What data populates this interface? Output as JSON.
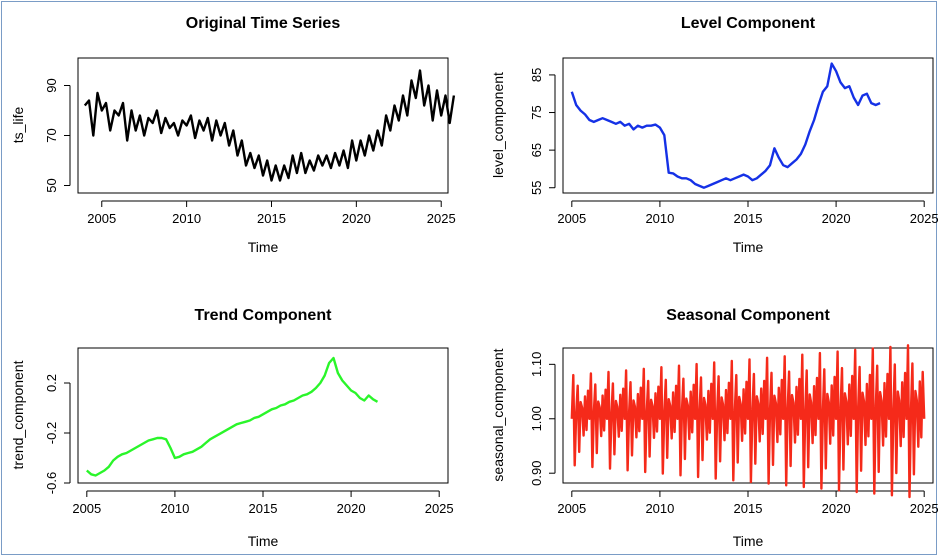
{
  "colors": {
    "frame_border": "#7a9cc6",
    "original": "#000000",
    "level": "#1531e6",
    "trend": "#2af52a",
    "seasonal": "#f52a1a"
  },
  "chart_data": [
    {
      "type": "line",
      "title": "Original Time Series",
      "xlabel": "Time",
      "ylabel": "ts_life",
      "xlim": [
        2003.6,
        2025.4
      ],
      "ylim": [
        47,
        101
      ],
      "x_ticks": [
        2005,
        2010,
        2015,
        2020,
        2025
      ],
      "y_ticks": [
        50,
        70,
        90
      ],
      "grid": false,
      "series": [
        {
          "x_start": 2004.0,
          "x_step": 0.25,
          "values": [
            82,
            84,
            70,
            87,
            80,
            83,
            72,
            80,
            78,
            83,
            68,
            80,
            72,
            78,
            70,
            77,
            75,
            80,
            71,
            77,
            73,
            75,
            70,
            76,
            74,
            78,
            69,
            76,
            72,
            77,
            68,
            76,
            70,
            75,
            66,
            72,
            62,
            68,
            58,
            63,
            57,
            62,
            54,
            60,
            52,
            58,
            52,
            58,
            53,
            62,
            55,
            63,
            55,
            60,
            56,
            62,
            58,
            62,
            57,
            63,
            58,
            64,
            57,
            68,
            60,
            68,
            62,
            70,
            64,
            72,
            66,
            78,
            72,
            82,
            76,
            86,
            78,
            92,
            85,
            96,
            82,
            90,
            76,
            88,
            78,
            86,
            75,
            86
          ]
        }
      ]
    },
    {
      "type": "line",
      "title": "Level Component",
      "xlabel": "Time",
      "ylabel": "level_component",
      "xlim": [
        2004.5,
        2025.5
      ],
      "ylim": [
        53.6,
        89.5
      ],
      "x_ticks": [
        2005,
        2010,
        2015,
        2020,
        2025
      ],
      "y_ticks": [
        55,
        65,
        75,
        85
      ],
      "grid": false,
      "series": [
        {
          "x_start": 2005.0,
          "x_step": 0.25,
          "values": [
            80.5,
            77,
            75.5,
            74.5,
            73,
            72.5,
            73,
            73.5,
            73,
            72.5,
            72,
            72.5,
            71.5,
            72,
            70.5,
            71.5,
            71,
            71.5,
            71.5,
            71.8,
            71,
            69,
            59,
            58.8,
            58,
            57.5,
            57.5,
            57,
            56,
            55.5,
            55,
            55.5,
            56,
            56.5,
            57,
            57.5,
            57,
            57.5,
            58,
            58.5,
            58,
            57,
            57.5,
            58.5,
            59.5,
            61,
            65.5,
            63,
            61,
            60.5,
            61.5,
            62.5,
            64,
            66.5,
            70,
            73,
            77,
            80.5,
            82,
            88,
            86,
            83,
            81.5,
            82,
            79,
            77,
            79.5,
            80,
            77.5,
            77,
            77.5
          ]
        }
      ]
    },
    {
      "type": "line",
      "title": "Trend Component",
      "xlabel": "Time",
      "ylabel": "trend_component",
      "xlim": [
        2004.5,
        2025.5
      ],
      "ylim": [
        -0.6,
        0.48
      ],
      "x_ticks": [
        2005,
        2010,
        2015,
        2020,
        2025
      ],
      "y_ticks": [
        -0.6,
        -0.2,
        0.2
      ],
      "grid": false,
      "series": [
        {
          "x_start": 2005.0,
          "x_step": 0.25,
          "values": [
            -0.5,
            -0.53,
            -0.54,
            -0.52,
            -0.5,
            -0.47,
            -0.42,
            -0.39,
            -0.37,
            -0.36,
            -0.34,
            -0.32,
            -0.3,
            -0.28,
            -0.26,
            -0.25,
            -0.24,
            -0.24,
            -0.25,
            -0.32,
            -0.4,
            -0.39,
            -0.37,
            -0.36,
            -0.35,
            -0.33,
            -0.31,
            -0.28,
            -0.25,
            -0.23,
            -0.21,
            -0.19,
            -0.17,
            -0.15,
            -0.13,
            -0.12,
            -0.11,
            -0.1,
            -0.08,
            -0.07,
            -0.05,
            -0.03,
            -0.01,
            0.0,
            0.02,
            0.03,
            0.05,
            0.06,
            0.08,
            0.1,
            0.11,
            0.13,
            0.16,
            0.2,
            0.26,
            0.36,
            0.4,
            0.28,
            0.22,
            0.18,
            0.14,
            0.12,
            0.08,
            0.06,
            0.1,
            0.07,
            0.05
          ]
        }
      ]
    },
    {
      "type": "line",
      "title": "Seasonal Component",
      "xlabel": "Time",
      "ylabel": "seasonal_component",
      "xlim": [
        2004.5,
        2025.5
      ],
      "ylim": [
        0.882,
        1.13
      ],
      "x_ticks": [
        2005,
        2010,
        2015,
        2020,
        2025
      ],
      "y_ticks": [
        0.9,
        1.0,
        1.1
      ],
      "grid": false,
      "series": [
        {
          "x_start": 2005.0,
          "x_step": 0.0833333,
          "period": 12,
          "season_base": [
            0.0,
            0.08,
            -0.085,
            0.01,
            0.06,
            -0.06,
            0.03,
            0.02,
            -0.03,
            0.04,
            -0.02,
            0.05
          ],
          "amplitude_growth": 0.012,
          "offset": 1.0
        }
      ]
    }
  ]
}
